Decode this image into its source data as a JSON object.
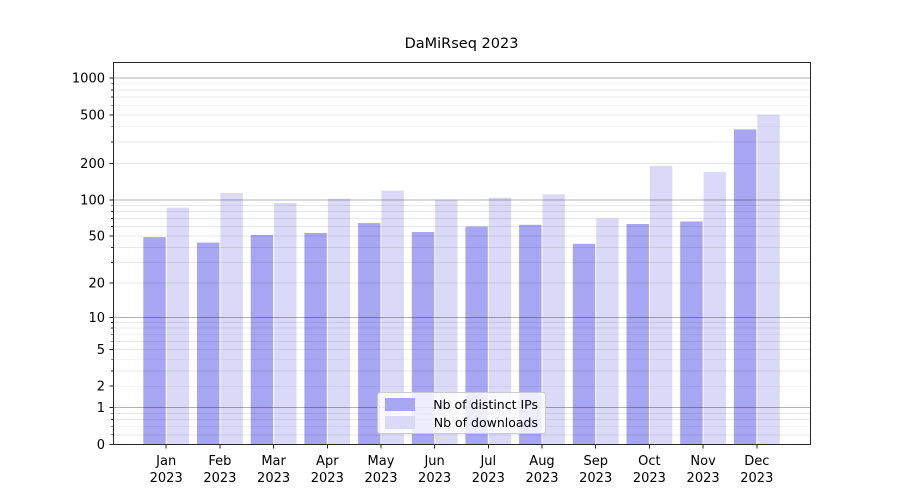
{
  "chart_data": {
    "type": "bar",
    "title": "DaMiRseq 2023",
    "categories": [
      "Jan",
      "Feb",
      "Mar",
      "Apr",
      "May",
      "Jun",
      "Jul",
      "Aug",
      "Sep",
      "Oct",
      "Nov",
      "Dec"
    ],
    "category_year": "2023",
    "series": [
      {
        "name": "Nb of distinct IPs",
        "color": "#a6a6f2",
        "values": [
          49,
          44,
          51,
          53,
          64,
          54,
          60,
          62,
          43,
          63,
          66,
          380
        ]
      },
      {
        "name": "Nb of downloads",
        "color": "#dadaf8",
        "values": [
          86,
          114,
          94,
          102,
          119,
          100,
          104,
          111,
          70,
          190,
          170,
          500
        ]
      }
    ],
    "y_axis": {
      "scale": "log10(1+x)",
      "tick_labels": [
        0,
        1,
        2,
        5,
        10,
        20,
        50,
        100,
        200,
        500,
        1000
      ],
      "range": [
        0,
        1340
      ],
      "decade_gridlines": [
        1,
        10,
        100,
        1000
      ],
      "minor_gridlines": [
        0.2,
        0.4,
        0.6,
        0.8,
        2,
        3,
        4,
        5,
        6,
        7,
        8,
        9,
        20,
        30,
        40,
        50,
        60,
        70,
        80,
        90,
        200,
        300,
        400,
        500,
        600,
        700,
        800,
        900
      ]
    },
    "grid": {
      "major_color": "#b0b0b0",
      "minor_color": "#e8e8e8",
      "frame_color": "#262626"
    },
    "legend_position": "lower center (inside plot)"
  }
}
